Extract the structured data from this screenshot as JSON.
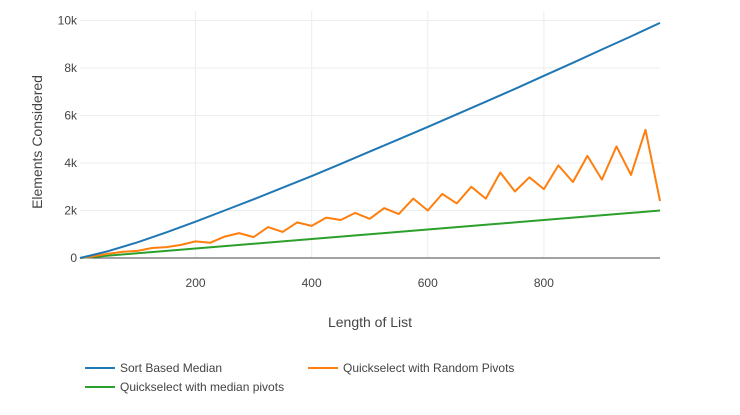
{
  "chart_data": {
    "type": "line",
    "title": "",
    "xlabel": "Length of List",
    "ylabel": "Elements Considered",
    "xlim": [
      1,
      1000
    ],
    "ylim": [
      0,
      10400
    ],
    "x_ticks": [
      200,
      400,
      600,
      800
    ],
    "x_tick_labels": [
      "200",
      "400",
      "600",
      "800"
    ],
    "y_ticks": [
      0,
      2000,
      4000,
      6000,
      8000,
      10000
    ],
    "y_tick_labels": [
      "0",
      "2k",
      "4k",
      "6k",
      "8k",
      "10k"
    ],
    "grid": true,
    "legend_position": "bottom",
    "series": [
      {
        "name": "Sort Based Median",
        "color": "#1f77b4",
        "x": [
          1,
          50,
          100,
          150,
          200,
          250,
          300,
          350,
          400,
          450,
          500,
          550,
          600,
          650,
          700,
          750,
          800,
          850,
          900,
          950,
          1000
        ],
        "y": [
          0,
          290,
          660,
          1080,
          1530,
          2000,
          2470,
          2960,
          3450,
          3960,
          4480,
          5000,
          5520,
          6050,
          6580,
          7120,
          7670,
          8220,
          8780,
          9330,
          9900
        ]
      },
      {
        "name": "Quickselect with Random Pivots",
        "color": "#ff7f0e",
        "x": [
          1,
          25,
          50,
          75,
          100,
          125,
          150,
          175,
          200,
          225,
          250,
          275,
          300,
          325,
          350,
          375,
          400,
          425,
          450,
          475,
          500,
          525,
          550,
          575,
          600,
          625,
          650,
          675,
          700,
          725,
          750,
          775,
          800,
          825,
          850,
          875,
          900,
          925,
          950,
          975,
          1000
        ],
        "y": [
          0,
          80,
          180,
          260,
          300,
          420,
          460,
          550,
          700,
          640,
          900,
          1050,
          880,
          1300,
          1100,
          1500,
          1350,
          1700,
          1600,
          1900,
          1650,
          2100,
          1850,
          2500,
          2000,
          2700,
          2300,
          3000,
          2500,
          3600,
          2800,
          3400,
          2900,
          3900,
          3200,
          4300,
          3300,
          4700,
          3500,
          5400,
          2400
        ]
      },
      {
        "name": "Quickselect with median pivots",
        "color": "#2ca02c",
        "x": [
          1,
          50,
          100,
          150,
          200,
          250,
          300,
          350,
          400,
          450,
          500,
          550,
          600,
          650,
          700,
          750,
          800,
          850,
          900,
          950,
          1000
        ],
        "y": [
          0,
          100,
          200,
          300,
          400,
          500,
          600,
          700,
          800,
          900,
          1000,
          1100,
          1200,
          1300,
          1400,
          1500,
          1600,
          1700,
          1800,
          1900,
          2000
        ]
      }
    ]
  }
}
